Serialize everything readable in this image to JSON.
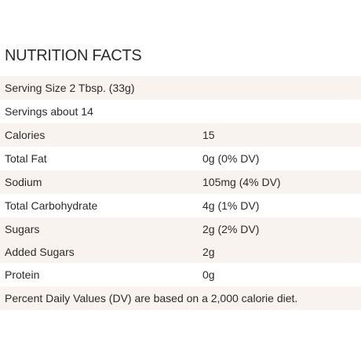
{
  "title": "NUTRITION FACTS",
  "serving_size": "Serving Size 2 Tbsp. (33g)",
  "servings": "Servings about 14",
  "rows": [
    {
      "label": "Calories",
      "value": "15"
    },
    {
      "label": "Total Fat",
      "value": "0g (0% DV)"
    },
    {
      "label": "Sodium",
      "value": "105mg (4% DV)"
    },
    {
      "label": "Total Carbohydrate",
      "value": "4g (1% DV)"
    },
    {
      "label": "Sugars",
      "value": "2g (2% DV)"
    },
    {
      "label": "Added Sugars",
      "value": "2g"
    },
    {
      "label": "Protein",
      "value": "0g"
    }
  ],
  "footnote": "Percent Daily Values (DV) are based on a 2,000 calorie diet.",
  "colors": {
    "shade": "#f8f3ee",
    "text": "#2b2b2b"
  }
}
